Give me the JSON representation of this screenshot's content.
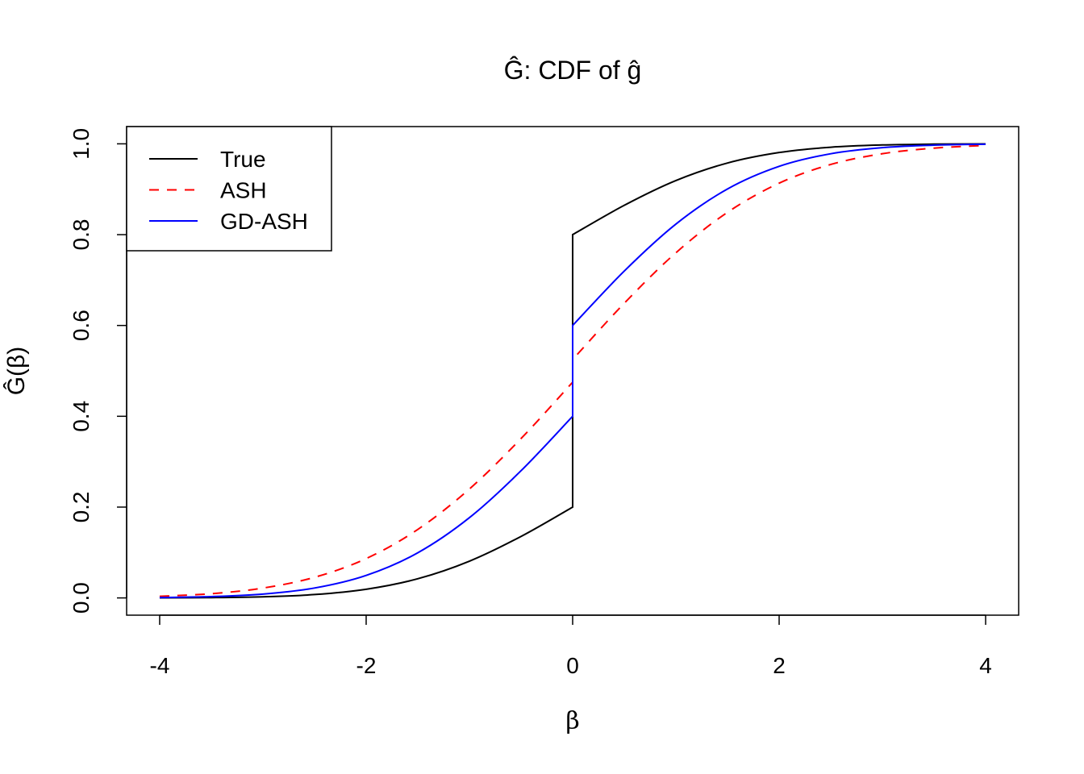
{
  "chart_data": {
    "type": "line",
    "title": "Ĝ: CDF of ĝ",
    "xlabel": "β",
    "ylabel": "Ĝ(β)",
    "xlim": [
      -4.32,
      4.32
    ],
    "ylim": [
      -0.038,
      1.038
    ],
    "xticks": [
      -4,
      -2,
      0,
      2,
      4
    ],
    "xtick_labels": [
      "-4",
      "-2",
      "0",
      "2",
      "4"
    ],
    "yticks": [
      0,
      0.2,
      0.4,
      0.6,
      0.8,
      1.0
    ],
    "ytick_labels": [
      "0.0",
      "0.2",
      "0.4",
      "0.6",
      "0.8",
      "1.0"
    ],
    "grid": false,
    "legend_position": "top-left",
    "x": [
      -4,
      -3.5,
      -3,
      -2.5,
      -2,
      -1.5,
      -1,
      -0.5,
      0,
      0,
      0.5,
      1,
      1.5,
      2,
      2.5,
      3,
      3.5,
      4
    ],
    "series": [
      {
        "name": "True",
        "color": "#000000",
        "dash": "solid",
        "values": [
          0.0002,
          0.0007,
          0.0025,
          0.0074,
          0.0191,
          0.0422,
          0.0809,
          0.1354,
          0.2,
          0.8,
          0.8646,
          0.9191,
          0.9578,
          0.9809,
          0.9926,
          0.9975,
          0.9993,
          0.9998
        ]
      },
      {
        "name": "ASH",
        "color": "#ff0000",
        "dash": "dashed",
        "values": [
          0.0036,
          0.0093,
          0.0217,
          0.0454,
          0.0866,
          0.1508,
          0.2399,
          0.3509,
          0.475,
          0.525,
          0.649,
          0.7601,
          0.8492,
          0.9134,
          0.9546,
          0.9783,
          0.9906,
          0.9964
        ]
      },
      {
        "name": "GD-ASH",
        "color": "#0000ff",
        "dash": "solid",
        "values": [
          0.0008,
          0.0029,
          0.0084,
          0.0218,
          0.0496,
          0.0994,
          0.1767,
          0.2801,
          0.4,
          0.6,
          0.7199,
          0.8233,
          0.9006,
          0.9504,
          0.9782,
          0.9916,
          0.9971,
          0.9992
        ]
      }
    ]
  }
}
